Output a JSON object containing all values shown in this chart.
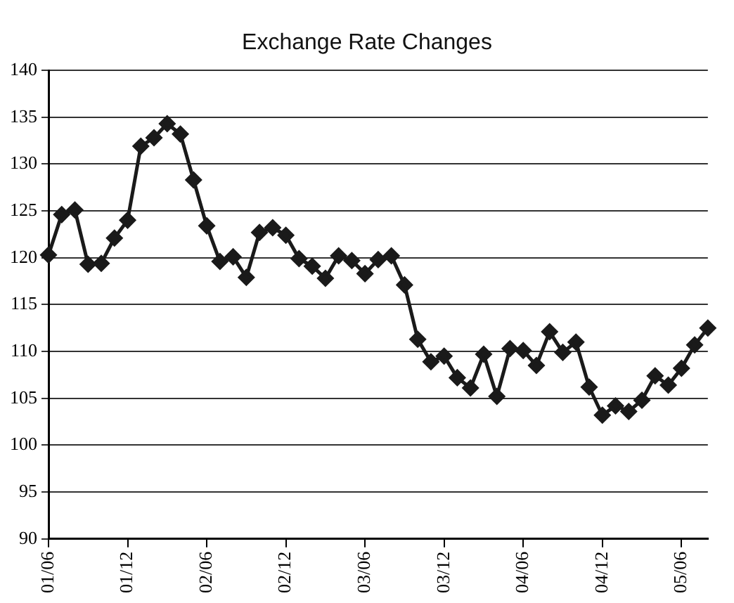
{
  "chart_data": {
    "type": "line",
    "title": "Exchange Rate Changes",
    "categories": [
      "01/06",
      null,
      null,
      null,
      null,
      null,
      "01/12",
      null,
      null,
      null,
      null,
      null,
      "02/06",
      null,
      null,
      null,
      null,
      null,
      "02/12",
      null,
      null,
      null,
      null,
      null,
      "03/06",
      null,
      null,
      null,
      null,
      null,
      "03/12",
      null,
      null,
      null,
      null,
      null,
      "04/06",
      null,
      null,
      null,
      null,
      null,
      "04/12",
      null,
      null,
      null,
      null,
      null,
      "05/06",
      null,
      null
    ],
    "series": [
      {
        "color": "#1a1a1a",
        "values": [
          120.3,
          124.6,
          125.1,
          119.3,
          119.4,
          122.1,
          124.0,
          131.9,
          132.8,
          134.3,
          133.2,
          128.3,
          123.4,
          119.6,
          120.1,
          117.9,
          122.7,
          123.2,
          122.4,
          119.9,
          119.1,
          117.8,
          120.2,
          119.7,
          118.3,
          119.8,
          120.2,
          117.1,
          111.3,
          108.9,
          109.5,
          107.2,
          106.1,
          109.7,
          105.2,
          110.3,
          110.1,
          108.5,
          112.1,
          109.9,
          111.0,
          106.2,
          103.2,
          104.2,
          103.6,
          104.8,
          107.4,
          106.4,
          108.2,
          110.7,
          112.5
        ]
      }
    ],
    "ylim": [
      90,
      140
    ],
    "yticks": [
      90,
      95,
      100,
      105,
      110,
      115,
      120,
      125,
      130,
      135,
      140
    ],
    "grid": "y",
    "legend": false,
    "marker": "diamond",
    "line_style": "solid"
  }
}
